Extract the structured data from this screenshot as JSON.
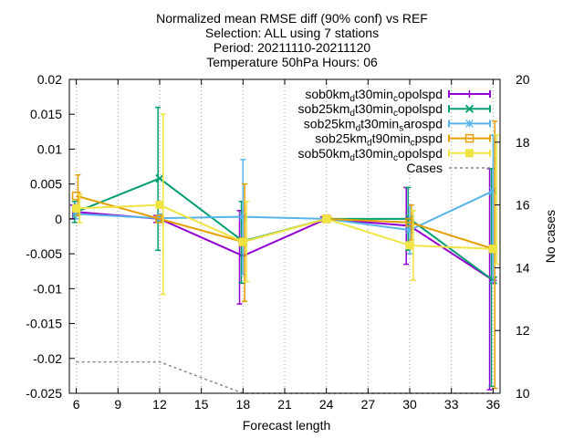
{
  "chart_data": {
    "type": "line",
    "title_lines": [
      "Normalized mean RMSE diff (90% conf) vs REF",
      "Selection: ALL using     7 stations",
      "Period: 20211110-20211120",
      "Temperature 50hPa   Hours: 06"
    ],
    "xlabel": "Forecast length",
    "ylabel_right": "No cases",
    "x_ticks": [
      6,
      9,
      12,
      15,
      18,
      21,
      24,
      27,
      30,
      33,
      36
    ],
    "xlim": [
      5.5,
      36.5
    ],
    "ylim": [
      -0.025,
      0.02
    ],
    "y_ticks": [
      "0.02",
      "0.015",
      "0.01",
      "0.005",
      "0",
      "-0.005",
      "-0.01",
      "-0.015",
      "-0.02",
      "-0.025"
    ],
    "y_tick_values": [
      0.02,
      0.015,
      0.01,
      0.005,
      0,
      -0.005,
      -0.01,
      -0.015,
      -0.02,
      -0.025
    ],
    "y2lim": [
      10,
      20
    ],
    "y2_ticks": [
      "20",
      "18",
      "16",
      "14",
      "12",
      "10"
    ],
    "y2_tick_values": [
      20,
      18,
      16,
      14,
      12,
      10
    ],
    "legend_position": "top-right",
    "series": [
      {
        "name": "sob0km_dt30min_copolspd",
        "legend_parts": [
          [
            "sob0km",
            ""
          ],
          [
            "d",
            "sub"
          ],
          [
            "t30min",
            ""
          ],
          [
            "c",
            "sub"
          ],
          [
            "opolspd",
            ""
          ]
        ],
        "color": "#9400d3",
        "marker": "plus",
        "x_offset": -0.25,
        "x": [
          6,
          12,
          18,
          24,
          30,
          36
        ],
        "y": [
          0.001,
          0.0,
          -0.0053,
          0.0,
          -0.001,
          -0.0088
        ],
        "err_low": [
          0.0,
          -0.0005,
          -0.0122,
          -0.0003,
          -0.0065,
          -0.0245
        ],
        "err_high": [
          0.002,
          0.0005,
          0.0012,
          0.0003,
          0.0045,
          0.0072
        ]
      },
      {
        "name": "sob25km_dt30min_copolspd",
        "legend_parts": [
          [
            "sob25km",
            ""
          ],
          [
            "d",
            "sub"
          ],
          [
            "t30min",
            ""
          ],
          [
            "c",
            "sub"
          ],
          [
            "opolspd",
            ""
          ]
        ],
        "color": "#009e73",
        "marker": "cross",
        "x_offset": -0.12,
        "x": [
          6,
          12,
          18,
          24,
          30,
          36
        ],
        "y": [
          0.001,
          0.0058,
          -0.0032,
          0.0,
          0.0,
          -0.0088
        ],
        "err_low": [
          -0.0005,
          -0.0045,
          -0.0092,
          -0.0003,
          -0.0045,
          -0.024
        ],
        "err_high": [
          0.0025,
          0.016,
          0.0025,
          0.0003,
          0.0045,
          0.0072
        ]
      },
      {
        "name": "sob25km_dt30min_sarospd",
        "legend_parts": [
          [
            "sob25km",
            ""
          ],
          [
            "d",
            "sub"
          ],
          [
            "t30min",
            ""
          ],
          [
            "s",
            "sub"
          ],
          [
            "arospd",
            ""
          ]
        ],
        "color": "#56b4e9",
        "marker": "star",
        "x_offset": 0.0,
        "x": [
          6,
          12,
          18,
          24,
          30,
          36
        ],
        "y": [
          0.0007,
          0.0001,
          0.0003,
          0.0,
          -0.0016,
          0.004
        ],
        "err_low": [
          0.0,
          -0.0005,
          -0.008,
          -0.0003,
          -0.005,
          -0.009
        ],
        "err_high": [
          0.0015,
          0.0007,
          0.0085,
          0.0003,
          0.002,
          0.012
        ]
      },
      {
        "name": "sob25km_dt90min_cpspd",
        "legend_parts": [
          [
            "sob25km",
            ""
          ],
          [
            "d",
            "sub"
          ],
          [
            "t90min",
            ""
          ],
          [
            "c",
            "sub"
          ],
          [
            "pspd",
            ""
          ]
        ],
        "color": "#e69f00",
        "marker": "square",
        "x_offset": 0.12,
        "x": [
          6,
          12,
          18,
          24,
          30,
          36
        ],
        "y": [
          0.0033,
          0.0,
          -0.0033,
          0.0,
          -0.0005,
          -0.0043
        ],
        "err_low": [
          0.0005,
          -0.0005,
          -0.0118,
          -0.0003,
          -0.003,
          -0.0243
        ],
        "err_high": [
          0.0063,
          0.0005,
          0.005,
          0.0003,
          0.002,
          0.014
        ]
      },
      {
        "name": "sob50km_dt30min_copolspd",
        "legend_parts": [
          [
            "sob50km",
            ""
          ],
          [
            "d",
            "sub"
          ],
          [
            "t30min",
            ""
          ],
          [
            "c",
            "sub"
          ],
          [
            "opolspd",
            ""
          ]
        ],
        "color": "#f0e442",
        "marker": "filled-square",
        "x_offset": 0.25,
        "x": [
          6,
          12,
          18,
          24,
          30,
          36
        ],
        "y": [
          0.0015,
          0.002,
          -0.0033,
          0.0,
          -0.0038,
          -0.0043
        ],
        "err_low": [
          -0.0005,
          -0.0108,
          -0.009,
          -0.0003,
          -0.0088,
          -0.0065
        ],
        "err_high": [
          0.0035,
          0.015,
          0.0025,
          0.0003,
          0.0012,
          0.012
        ]
      }
    ],
    "cases": {
      "name": "Cases",
      "color": "#888888",
      "x": [
        6,
        12,
        18,
        24,
        30,
        36
      ],
      "y": [
        11,
        11,
        10,
        10,
        10,
        10
      ]
    }
  }
}
